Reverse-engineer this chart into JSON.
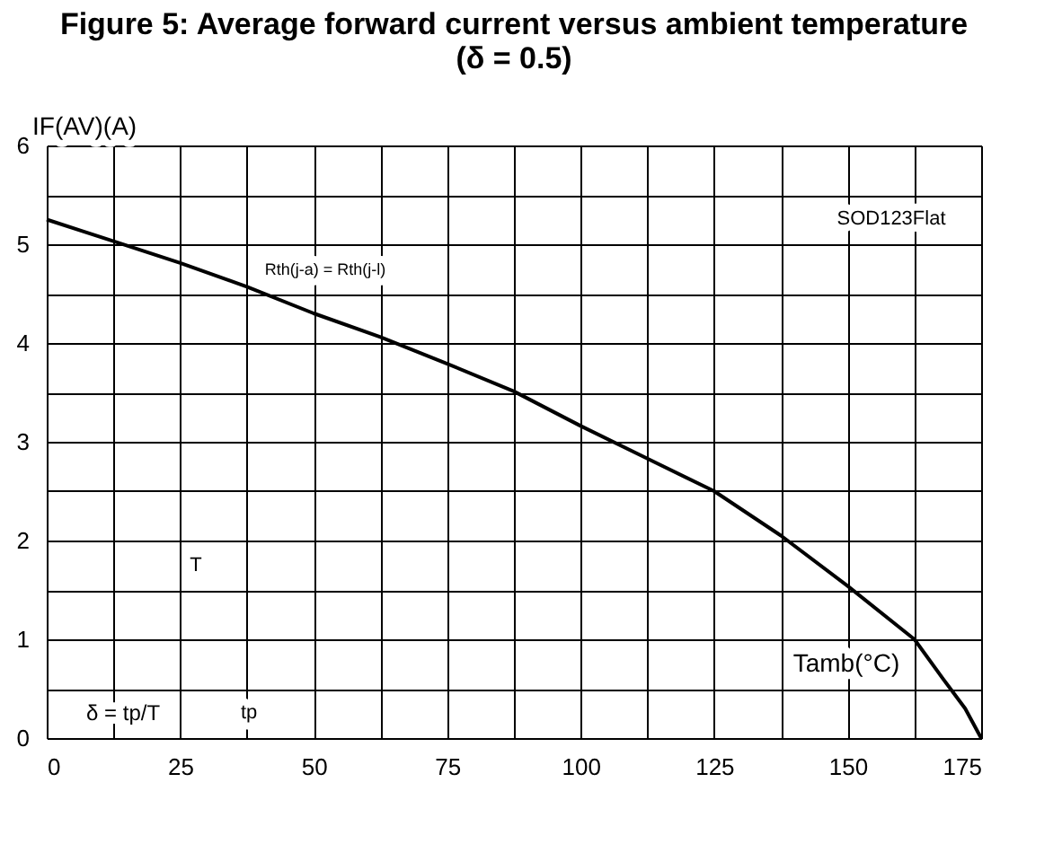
{
  "chart_data": {
    "type": "line",
    "title": "Figure 5: Average forward current versus ambient temperature (δ = 0.5)",
    "xlabel": "Tamb(°C)",
    "ylabel": "IF(AV)(A)",
    "x": [
      0,
      12.5,
      25,
      37.5,
      50,
      62.5,
      75,
      87.5,
      100,
      112.5,
      125,
      137.5,
      150,
      162.5,
      168,
      172,
      175
    ],
    "series": [
      {
        "color": "#000000",
        "values": [
          5.25,
          5.03,
          4.81,
          4.57,
          4.3,
          4.06,
          3.79,
          3.51,
          3.16,
          2.83,
          2.5,
          2.05,
          1.54,
          1.0,
          0.59,
          0.3,
          0.0
        ]
      }
    ],
    "xlim": [
      0,
      175
    ],
    "ylim": [
      0,
      6
    ],
    "xticks": [
      0,
      {
        "value": 12.5,
        "label": null
      },
      25,
      {
        "value": 37.5,
        "label": null
      },
      50,
      {
        "value": 62.5,
        "label": null
      },
      75,
      {
        "value": 87.5,
        "label": null
      },
      100,
      {
        "value": 112.5,
        "label": null
      },
      125,
      {
        "value": 137.5,
        "label": null
      },
      150,
      {
        "value": 162.5,
        "label": null
      },
      175
    ],
    "yticks": [
      0,
      {
        "value": 0.5,
        "label": null
      },
      1,
      {
        "value": 1.5,
        "label": null
      },
      2,
      {
        "value": 2.5,
        "label": null
      },
      3,
      {
        "value": 3.5,
        "label": null
      },
      4,
      {
        "value": 4.5,
        "label": null
      },
      5,
      {
        "value": 5.5,
        "label": null
      },
      6
    ],
    "grid": true,
    "marker": "none",
    "line_style": "solid",
    "annotations": [
      "SOD123Flat",
      "Rth(j-a) = Rth(j-l)",
      "T",
      "δ = tp/T",
      "tp"
    ]
  }
}
